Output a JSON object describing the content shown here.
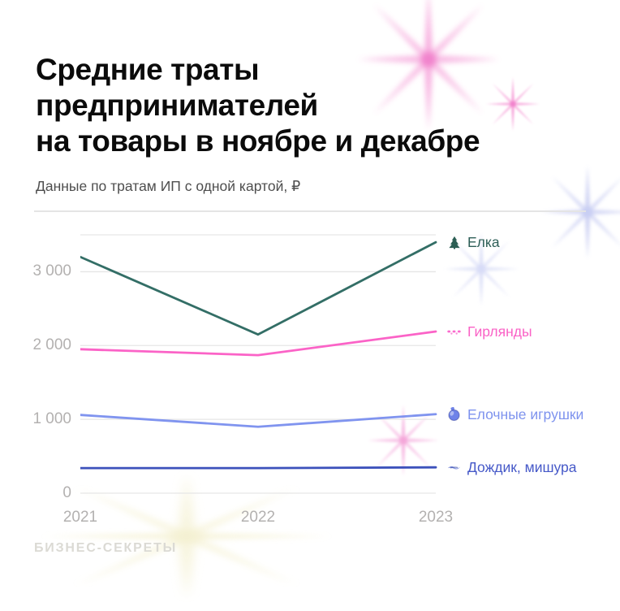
{
  "header": {
    "title_lines": [
      "Средние траты",
      "предпринимателей",
      "на товары в ноябре и декабре"
    ],
    "subtitle": "Данные по тратам ИП с одной картой, ₽"
  },
  "chart_data": {
    "type": "line",
    "title": "Средние траты предпринимателей на товары в ноябре и декабре",
    "subtitle": "Данные по тратам ИП с одной картой, ₽",
    "categories": [
      "2021",
      "2022",
      "2023"
    ],
    "series": [
      {
        "name": "Елка",
        "icon": "fir-tree-icon",
        "color": "#336E66",
        "label_color": "#2E5F58",
        "icon_color": "#2B5E54",
        "values": [
          3200,
          2150,
          3400
        ]
      },
      {
        "name": "Гирлянды",
        "icon": "garland-icon",
        "color": "#FB63C7",
        "label_color": "#FA62C6",
        "icon_color": "#FA6BCE",
        "values": [
          1950,
          1870,
          2190
        ]
      },
      {
        "name": "Елочные игрушки",
        "icon": "ornament-ball-icon",
        "color": "#8094EF",
        "label_color": "#7E93EE",
        "icon_color": "#6F83E8",
        "values": [
          1060,
          900,
          1070
        ]
      },
      {
        "name": "Дождик, мишура",
        "icon": "tinsel-icon",
        "color": "#3C51BB",
        "label_color": "#4659C8",
        "icon_color": "#8C9BE0",
        "values": [
          340,
          340,
          350
        ]
      }
    ],
    "xlabel": "",
    "ylabel": "",
    "ylim": [
      0,
      3500
    ],
    "yticks": [
      {
        "value": 0,
        "label": "0"
      },
      {
        "value": 1000,
        "label": "1 000"
      },
      {
        "value": 2000,
        "label": "2 000"
      },
      {
        "value": 3000,
        "label": "3 000"
      }
    ],
    "gridline_values": [
      0,
      1000,
      2000,
      3000,
      3500
    ],
    "grid": true,
    "legend_position": "right"
  },
  "footer": {
    "logo_text": "БИЗНЕС-СЕКРЕТЫ"
  },
  "colors": {
    "grid": "#E6E6E6",
    "separator": "#E4E4E4",
    "axis_labels": "#B3B1B0",
    "title": "#0B0B0B",
    "subtitle": "#4E4E4E",
    "logo": "#DBDAD4",
    "background": "#FFFFFF"
  }
}
